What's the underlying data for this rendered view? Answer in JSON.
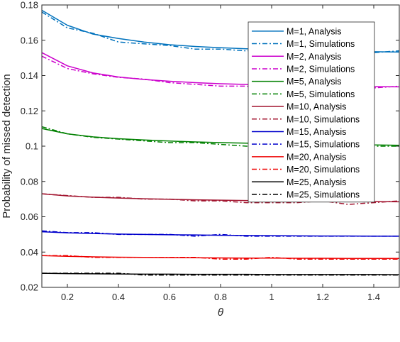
{
  "chart_data": {
    "type": "line",
    "xlabel": "θ",
    "ylabel": "Probability of missed detection",
    "xlim": [
      0.1,
      1.5
    ],
    "ylim": [
      0.02,
      0.18
    ],
    "xticks": [
      0.2,
      0.4,
      0.6,
      0.8,
      1,
      1.2,
      1.4
    ],
    "xtick_labels": [
      "0.2",
      "0.4",
      "0.6",
      "0.8",
      "1",
      "1.2",
      "1.4"
    ],
    "yticks": [
      0.02,
      0.04,
      0.06,
      0.08,
      0.1,
      0.12,
      0.14,
      0.16,
      0.18
    ],
    "ytick_labels": [
      "0.02",
      "0.04",
      "0.06",
      "0.08",
      "0.1",
      "0.12",
      "0.14",
      "0.16",
      "0.18"
    ],
    "grid": false,
    "legend_position": "top-right",
    "x": [
      0.1,
      0.2,
      0.3,
      0.4,
      0.5,
      0.6,
      0.7,
      0.8,
      0.9,
      1.0,
      1.1,
      1.2,
      1.3,
      1.4,
      1.5
    ],
    "series": [
      {
        "name": "M=1, Analysis",
        "color": "#0072BD",
        "style": "solid",
        "values": [
          0.177,
          0.1685,
          0.1635,
          0.161,
          0.159,
          0.1575,
          0.1565,
          0.1558,
          0.1552,
          0.1547,
          0.1543,
          0.154,
          0.1537,
          0.1535,
          0.1533
        ]
      },
      {
        "name": "M=1, Simulations",
        "color": "#0072BD",
        "style": "dashdot",
        "values": [
          0.176,
          0.167,
          0.164,
          0.159,
          0.158,
          0.157,
          0.155,
          0.155,
          0.154,
          0.155,
          0.153,
          0.154,
          0.152,
          0.153,
          0.154
        ]
      },
      {
        "name": "M=2, Analysis",
        "color": "#CC00CC",
        "style": "solid",
        "values": [
          0.153,
          0.1455,
          0.1415,
          0.1392,
          0.1378,
          0.1368,
          0.136,
          0.1354,
          0.135,
          0.1346,
          0.1343,
          0.1341,
          0.1339,
          0.1337,
          0.1336
        ]
      },
      {
        "name": "M=2, Simulations",
        "color": "#CC00CC",
        "style": "dashdot",
        "values": [
          0.151,
          0.144,
          0.141,
          0.139,
          0.138,
          0.136,
          0.135,
          0.134,
          0.134,
          0.133,
          0.134,
          0.133,
          0.134,
          0.133,
          0.134
        ]
      },
      {
        "name": "M=5, Analysis",
        "color": "#008000",
        "style": "solid",
        "values": [
          0.11,
          0.107,
          0.1053,
          0.1042,
          0.1035,
          0.1029,
          0.1024,
          0.102,
          0.1017,
          0.1014,
          0.1012,
          0.101,
          0.1008,
          0.1007,
          0.1005
        ]
      },
      {
        "name": "M=5, Simulations",
        "color": "#008000",
        "style": "dashdot",
        "values": [
          0.111,
          0.107,
          0.105,
          0.104,
          0.103,
          0.102,
          0.102,
          0.101,
          0.1,
          0.1,
          0.099,
          0.1,
          0.099,
          0.1,
          0.1
        ]
      },
      {
        "name": "M=10, Analysis",
        "color": "#A2142F",
        "style": "solid",
        "values": [
          0.073,
          0.0718,
          0.0711,
          0.0706,
          0.0702,
          0.0699,
          0.0696,
          0.0694,
          0.0692,
          0.069,
          0.0689,
          0.0688,
          0.0687,
          0.0686,
          0.0685
        ]
      },
      {
        "name": "M=10, Simulations",
        "color": "#A2142F",
        "style": "dashdot",
        "values": [
          0.073,
          0.072,
          0.071,
          0.071,
          0.07,
          0.07,
          0.069,
          0.069,
          0.068,
          0.068,
          0.068,
          0.069,
          0.067,
          0.068,
          0.069
        ]
      },
      {
        "name": "M=15, Analysis",
        "color": "#0000CC",
        "style": "solid",
        "values": [
          0.0515,
          0.0509,
          0.0505,
          0.0502,
          0.05,
          0.0498,
          0.0497,
          0.0495,
          0.0494,
          0.0493,
          0.0492,
          0.0491,
          0.0491,
          0.049,
          0.049
        ]
      },
      {
        "name": "M=15, Simulations",
        "color": "#0000CC",
        "style": "dashdot",
        "values": [
          0.052,
          0.051,
          0.051,
          0.05,
          0.05,
          0.05,
          0.049,
          0.05,
          0.049,
          0.049,
          0.049,
          0.049,
          0.049,
          0.049,
          0.049
        ]
      },
      {
        "name": "M=20, Analysis",
        "color": "#EE0000",
        "style": "solid",
        "values": [
          0.038,
          0.0376,
          0.0373,
          0.0371,
          0.037,
          0.0369,
          0.0368,
          0.0367,
          0.0366,
          0.0366,
          0.0365,
          0.0365,
          0.0364,
          0.0364,
          0.0364
        ]
      },
      {
        "name": "M=20, Simulations",
        "color": "#EE0000",
        "style": "dashdot",
        "values": [
          0.038,
          0.038,
          0.037,
          0.037,
          0.037,
          0.037,
          0.037,
          0.036,
          0.036,
          0.037,
          0.036,
          0.036,
          0.036,
          0.036,
          0.036
        ]
      },
      {
        "name": "M=25, Analysis",
        "color": "#000000",
        "style": "solid",
        "values": [
          0.028,
          0.0278,
          0.0277,
          0.0276,
          0.0275,
          0.0275,
          0.0274,
          0.0274,
          0.0274,
          0.0273,
          0.0273,
          0.0273,
          0.0273,
          0.0273,
          0.0272
        ]
      },
      {
        "name": "M=25, Simulations",
        "color": "#000000",
        "style": "dashdot",
        "values": [
          0.028,
          0.028,
          0.028,
          0.028,
          0.027,
          0.027,
          0.027,
          0.027,
          0.027,
          0.027,
          0.027,
          0.027,
          0.027,
          0.027,
          0.027
        ]
      }
    ]
  }
}
